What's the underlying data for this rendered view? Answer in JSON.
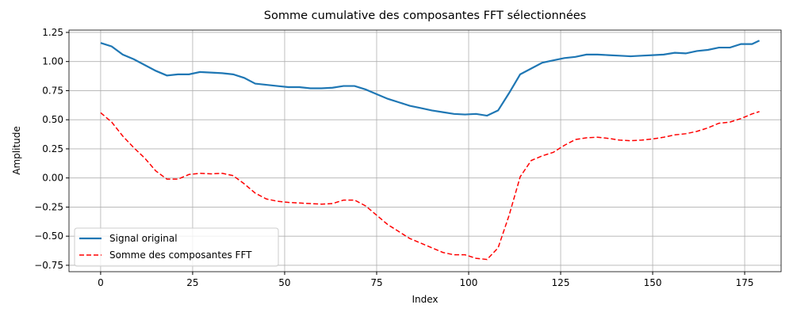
{
  "chart_data": {
    "type": "line",
    "title": "Somme cumulative des composantes FFT sélectionnées",
    "x_label": "Index",
    "y_label": "Amplitude",
    "x": [
      0,
      3,
      6,
      9,
      12,
      15,
      18,
      21,
      24,
      27,
      30,
      33,
      36,
      39,
      42,
      45,
      48,
      51,
      54,
      57,
      60,
      63,
      66,
      69,
      72,
      75,
      78,
      81,
      84,
      87,
      90,
      93,
      96,
      99,
      102,
      105,
      108,
      111,
      114,
      117,
      120,
      123,
      126,
      129,
      132,
      135,
      138,
      141,
      144,
      147,
      150,
      153,
      156,
      159,
      162,
      165,
      168,
      171,
      174,
      177,
      179
    ],
    "series": [
      {
        "name": "Signal original",
        "color": "#1f77b4",
        "dash": "solid",
        "values": [
          1.16,
          1.13,
          1.06,
          1.02,
          0.97,
          0.92,
          0.88,
          0.89,
          0.89,
          0.91,
          0.905,
          0.9,
          0.89,
          0.86,
          0.81,
          0.8,
          0.79,
          0.78,
          0.78,
          0.77,
          0.77,
          0.775,
          0.79,
          0.79,
          0.76,
          0.72,
          0.68,
          0.65,
          0.62,
          0.6,
          0.58,
          0.565,
          0.55,
          0.545,
          0.55,
          0.535,
          0.58,
          0.73,
          0.89,
          0.94,
          0.99,
          1.01,
          1.03,
          1.04,
          1.06,
          1.06,
          1.055,
          1.05,
          1.045,
          1.05,
          1.055,
          1.06,
          1.075,
          1.07,
          1.09,
          1.1,
          1.12,
          1.12,
          1.15,
          1.15,
          1.18
        ]
      },
      {
        "name": "Somme des composantes FFT",
        "color": "#ff0000",
        "dash": "dashed",
        "values": [
          0.56,
          0.48,
          0.36,
          0.26,
          0.17,
          0.06,
          -0.01,
          -0.01,
          0.03,
          0.04,
          0.035,
          0.04,
          0.02,
          -0.05,
          -0.13,
          -0.18,
          -0.2,
          -0.21,
          -0.215,
          -0.22,
          -0.225,
          -0.22,
          -0.19,
          -0.19,
          -0.24,
          -0.32,
          -0.4,
          -0.46,
          -0.52,
          -0.56,
          -0.6,
          -0.64,
          -0.66,
          -0.66,
          -0.69,
          -0.7,
          -0.6,
          -0.32,
          0.01,
          0.15,
          0.19,
          0.22,
          0.28,
          0.33,
          0.345,
          0.35,
          0.34,
          0.325,
          0.32,
          0.325,
          0.335,
          0.35,
          0.37,
          0.38,
          0.4,
          0.43,
          0.47,
          0.48,
          0.51,
          0.55,
          0.57
        ]
      }
    ],
    "xlim": [
      -8.6,
      184.9
    ],
    "xticks": [
      0,
      25,
      50,
      75,
      100,
      125,
      150,
      175
    ],
    "ylim": [
      -0.805,
      1.27
    ],
    "yticks": [
      {
        "value": -0.75,
        "label": "−0.75"
      },
      {
        "value": -0.5,
        "label": "−0.50"
      },
      {
        "value": -0.25,
        "label": "−0.25"
      },
      {
        "value": 0,
        "label": "0.00"
      },
      {
        "value": 0.25,
        "label": "0.25"
      },
      {
        "value": 0.5,
        "label": "0.50"
      },
      {
        "value": 0.75,
        "label": "0.75"
      },
      {
        "value": 1,
        "label": "1.00"
      },
      {
        "value": 1.25,
        "label": "1.25"
      }
    ],
    "grid": true,
    "legend": "lower left"
  }
}
